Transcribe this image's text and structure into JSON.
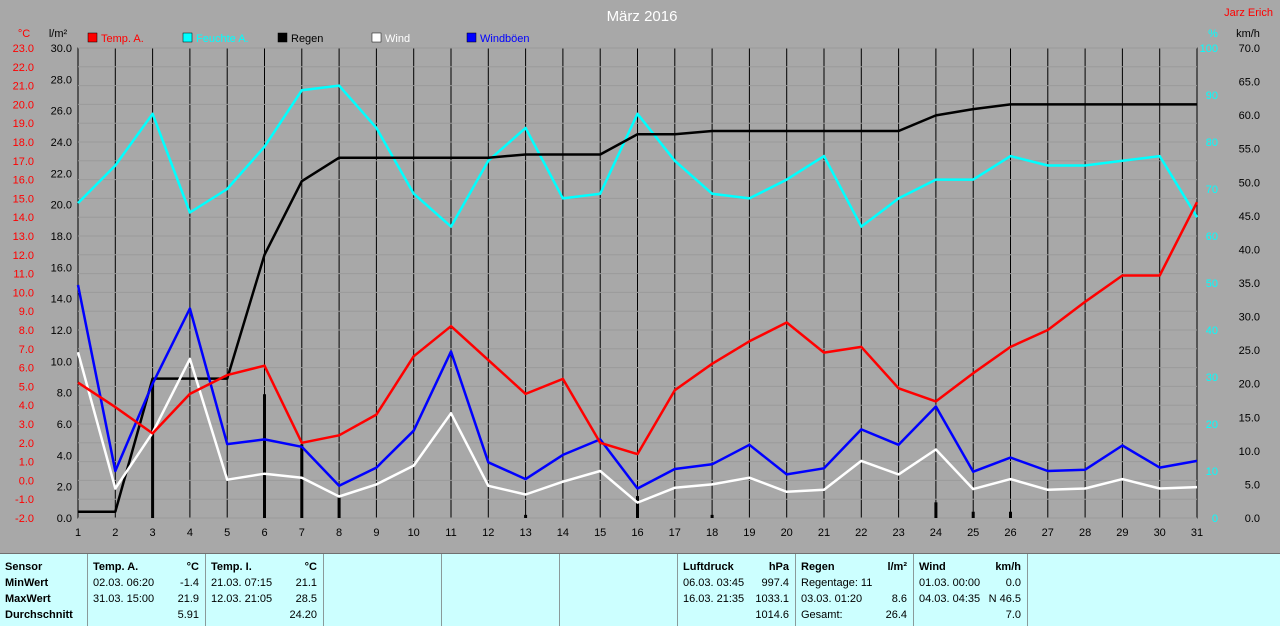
{
  "chart_data": {
    "type": "line",
    "title": "März 2016",
    "author": "Jarz Erich",
    "x": [
      1,
      2,
      3,
      4,
      5,
      6,
      7,
      8,
      9,
      10,
      11,
      12,
      13,
      14,
      15,
      16,
      17,
      18,
      19,
      20,
      21,
      22,
      23,
      24,
      25,
      26,
      27,
      28,
      29,
      30,
      31
    ],
    "xlim": [
      1,
      31
    ],
    "axes": {
      "temp_c": {
        "label": "°C",
        "ylim": [
          -2.0,
          23.0
        ],
        "ticks": [
          "23.0",
          "22.0",
          "21.0",
          "20.0",
          "19.0",
          "18.0",
          "17.0",
          "16.0",
          "15.0",
          "14.0",
          "13.0",
          "12.0",
          "11.0",
          "10.0",
          "9.0",
          "8.0",
          "7.0",
          "6.0",
          "5.0",
          "4.0",
          "3.0",
          "2.0",
          "1.0",
          "0.0",
          "-1.0",
          "-2.0"
        ]
      },
      "rain_mm": {
        "label": "l/m²",
        "ylim": [
          0.0,
          30.0
        ],
        "ticks": [
          "30.0",
          "28.0",
          "26.0",
          "24.0",
          "22.0",
          "20.0",
          "18.0",
          "16.0",
          "14.0",
          "12.0",
          "10.0",
          "8.0",
          "6.0",
          "4.0",
          "2.0",
          "0.0"
        ]
      },
      "humidity_pct": {
        "label": "%",
        "ylim": [
          0,
          100
        ],
        "ticks": [
          "100",
          "90",
          "80",
          "70",
          "60",
          "50",
          "40",
          "30",
          "20",
          "10",
          "0"
        ]
      },
      "wind_kmh": {
        "label": "km/h",
        "ylim": [
          0.0,
          70.0
        ],
        "ticks": [
          "70.0",
          "65.0",
          "60.0",
          "55.0",
          "50.0",
          "45.0",
          "40.0",
          "35.0",
          "30.0",
          "25.0",
          "20.0",
          "15.0",
          "10.0",
          "5.0",
          "0.0"
        ]
      }
    },
    "legend": [
      {
        "name": "Temp. A.",
        "color": "#ff0000"
      },
      {
        "name": "Feuchte A.",
        "color": "#00ffff"
      },
      {
        "name": "Regen",
        "color": "#000000"
      },
      {
        "name": "Wind",
        "color": "#ffffff"
      },
      {
        "name": "Windböen",
        "color": "#0000ff"
      }
    ],
    "series": [
      {
        "name": "Temp. A.",
        "axis": "temp_c",
        "color": "#ff0000",
        "values": [
          5.2,
          3.9,
          2.5,
          4.6,
          5.6,
          6.1,
          2.0,
          2.4,
          3.5,
          6.6,
          8.2,
          6.4,
          4.6,
          5.4,
          2.0,
          1.4,
          4.8,
          6.2,
          7.4,
          8.4,
          6.8,
          7.1,
          4.9,
          4.2,
          5.7,
          7.1,
          8.0,
          9.5,
          10.9,
          10.9,
          14.8
        ]
      },
      {
        "name": "Feuchte A.",
        "axis": "humidity_pct",
        "color": "#00ffff",
        "values": [
          67,
          75,
          86,
          65,
          70,
          79,
          91,
          92,
          83,
          69,
          62,
          76,
          83,
          68,
          69,
          86,
          76,
          69,
          68,
          72,
          77,
          62,
          68,
          72,
          72,
          77,
          75,
          75,
          76,
          77,
          64
        ]
      },
      {
        "name": "Regen",
        "axis": "rain_mm",
        "color": "#000000",
        "values": [
          0.4,
          0.4,
          8.9,
          8.9,
          8.9,
          16.8,
          21.5,
          23.0,
          23.0,
          23.0,
          23.0,
          23.0,
          23.2,
          23.2,
          23.2,
          24.5,
          24.5,
          24.7,
          24.7,
          24.7,
          24.7,
          24.7,
          24.7,
          25.7,
          26.1,
          26.4,
          26.4,
          26.4,
          26.4,
          26.4,
          26.4
        ]
      },
      {
        "name": "Wind",
        "axis": "wind_kmh",
        "color": "#ffffff",
        "values": [
          24.7,
          4.4,
          12.7,
          23.7,
          5.7,
          6.6,
          6.0,
          3.2,
          5.0,
          7.8,
          15.6,
          4.8,
          3.5,
          5.4,
          7.0,
          2.3,
          4.5,
          5.0,
          6.0,
          3.9,
          4.2,
          8.5,
          6.5,
          10.2,
          4.3,
          5.8,
          4.2,
          4.4,
          5.8,
          4.4,
          4.6
        ]
      },
      {
        "name": "Windböen",
        "axis": "wind_kmh",
        "color": "#0000ff",
        "values": [
          34.7,
          7.0,
          20.0,
          31.2,
          11.0,
          11.7,
          10.6,
          4.8,
          7.5,
          13.0,
          24.8,
          8.3,
          5.8,
          9.4,
          11.7,
          4.4,
          7.3,
          8.0,
          10.9,
          6.5,
          7.4,
          13.2,
          10.9,
          16.6,
          6.9,
          9.0,
          7.0,
          7.2,
          10.8,
          7.5,
          8.5
        ]
      }
    ],
    "daily_rain_bars": {
      "axis": "rain_mm",
      "color": "#000000",
      "x": [
        3,
        6,
        7,
        8,
        13,
        16,
        18,
        24,
        25,
        26
      ],
      "values": [
        8.6,
        7.9,
        4.7,
        1.3,
        0.2,
        1.4,
        0.2,
        1.0,
        0.4,
        0.4
      ]
    }
  },
  "stats": {
    "sensor": {
      "header": "Sensor",
      "rows": [
        "MinWert",
        "MaxWert",
        "Durchschnitt"
      ]
    },
    "temp_a": {
      "header": "Temp. A.",
      "unit": "°C",
      "min_time": "02.03.  06:20",
      "min_val": "-1.4",
      "max_time": "31.03.  15:00",
      "max_val": "21.9",
      "avg_val": "5.91"
    },
    "temp_i": {
      "header": "Temp. I.",
      "unit": "°C",
      "min_time": "21.03.  07:15",
      "min_val": "21.1",
      "max_time": "12.03.  21:05",
      "max_val": "28.5",
      "avg_val": "24.20"
    },
    "pressure": {
      "header": "Luftdruck",
      "unit": "hPa",
      "min_time": "06.03.  03:45",
      "min_val": "997.4",
      "max_time": "16.03.  21:35",
      "max_val": "1033.1",
      "avg_val": "1014.6"
    },
    "rain": {
      "header": "Regen",
      "unit": "l/m²",
      "days_label": "Regentage: 11",
      "max_time": "03.03.  01:20",
      "max_val": "8.6",
      "total_label": "Gesamt:",
      "total_val": "26.4"
    },
    "wind": {
      "header": "Wind",
      "unit": "km/h",
      "min_time": "01.03.  00:00",
      "min_val": "0.0",
      "max_time": "04.03.  04:35",
      "max_val": "N 46.5",
      "avg_val": "7.0"
    }
  }
}
